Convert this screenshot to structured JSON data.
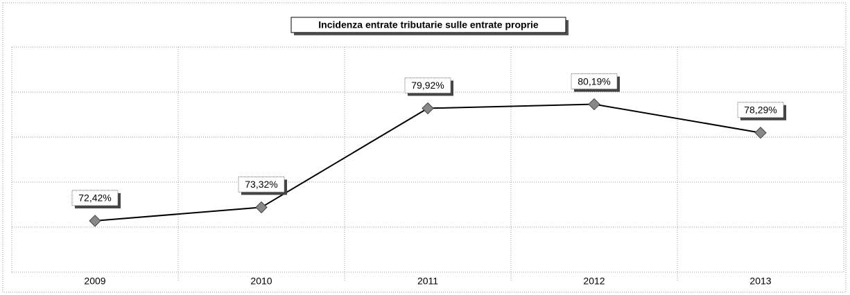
{
  "chart_data": {
    "type": "line",
    "title": "Incidenza entrate tributarie sulle entrate proprie",
    "categories": [
      "2009",
      "2010",
      "2011",
      "2012",
      "2013"
    ],
    "series": [
      {
        "name": null,
        "color": "#000000",
        "values": [
          72.42,
          73.32,
          79.92,
          80.19,
          78.29
        ],
        "value_labels": [
          "72,42%",
          "73,32%",
          "79,92%",
          "80,19%",
          "78,29%"
        ]
      }
    ],
    "ylim": [
      69,
      84
    ],
    "yticks": [
      69,
      72,
      75,
      78,
      81,
      84
    ],
    "grid": true
  }
}
